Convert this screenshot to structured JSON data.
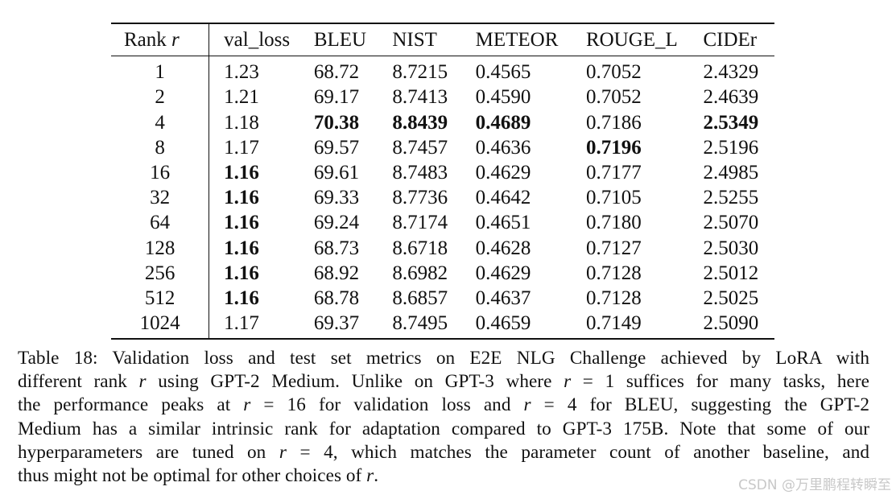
{
  "table": {
    "headers": {
      "rank": "Rank",
      "rank_var": "r",
      "val_loss": "val_loss",
      "bleu": "BLEU",
      "nist": "NIST",
      "meteor": "METEOR",
      "rouge_l": "ROUGE_L",
      "cider": "CIDEr"
    },
    "rows": [
      {
        "rank": "1",
        "val_loss": "1.23",
        "bleu": "68.72",
        "nist": "8.7215",
        "meteor": "0.4565",
        "rouge_l": "0.7052",
        "cider": "2.4329"
      },
      {
        "rank": "2",
        "val_loss": "1.21",
        "bleu": "69.17",
        "nist": "8.7413",
        "meteor": "0.4590",
        "rouge_l": "0.7052",
        "cider": "2.4639"
      },
      {
        "rank": "4",
        "val_loss": "1.18",
        "bleu": "70.38",
        "nist": "8.8439",
        "meteor": "0.4689",
        "rouge_l": "0.7186",
        "cider": "2.5349"
      },
      {
        "rank": "8",
        "val_loss": "1.17",
        "bleu": "69.57",
        "nist": "8.7457",
        "meteor": "0.4636",
        "rouge_l": "0.7196",
        "cider": "2.5196"
      },
      {
        "rank": "16",
        "val_loss": "1.16",
        "bleu": "69.61",
        "nist": "8.7483",
        "meteor": "0.4629",
        "rouge_l": "0.7177",
        "cider": "2.4985"
      },
      {
        "rank": "32",
        "val_loss": "1.16",
        "bleu": "69.33",
        "nist": "8.7736",
        "meteor": "0.4642",
        "rouge_l": "0.7105",
        "cider": "2.5255"
      },
      {
        "rank": "64",
        "val_loss": "1.16",
        "bleu": "69.24",
        "nist": "8.7174",
        "meteor": "0.4651",
        "rouge_l": "0.7180",
        "cider": "2.5070"
      },
      {
        "rank": "128",
        "val_loss": "1.16",
        "bleu": "68.73",
        "nist": "8.6718",
        "meteor": "0.4628",
        "rouge_l": "0.7127",
        "cider": "2.5030"
      },
      {
        "rank": "256",
        "val_loss": "1.16",
        "bleu": "68.92",
        "nist": "8.6982",
        "meteor": "0.4629",
        "rouge_l": "0.7128",
        "cider": "2.5012"
      },
      {
        "rank": "512",
        "val_loss": "1.16",
        "bleu": "68.78",
        "nist": "8.6857",
        "meteor": "0.4637",
        "rouge_l": "0.7128",
        "cider": "2.5025"
      },
      {
        "rank": "1024",
        "val_loss": "1.17",
        "bleu": "69.37",
        "nist": "8.7495",
        "meteor": "0.4659",
        "rouge_l": "0.7149",
        "cider": "2.5090"
      }
    ]
  },
  "caption": {
    "l1": "Table 18: Validation loss and test set metrics on E2E NLG Challenge achieved by LoRA with",
    "l2_a": "different rank ",
    "l2_b": " using GPT-2 Medium. Unlike on GPT-3 where ",
    "l2_c": " = 1 suffices for many tasks, here",
    "l3_a": "the performance peaks at ",
    "l3_b": " = 16 for validation loss and ",
    "l3_c": " = 4 for BLEU, suggesting the GPT-2",
    "l4": "Medium has a similar intrinsic rank for adaptation compared to GPT-3 175B. Note that some of our",
    "l5_a": "hyperparameters are tuned on ",
    "l5_b": " = 4, which matches the parameter count of another baseline, and",
    "l6_a": "thus might not be optimal for other choices of ",
    "l6_b": ".",
    "var": "r"
  },
  "watermark": "CSDN @万里鹏程转瞬至"
}
